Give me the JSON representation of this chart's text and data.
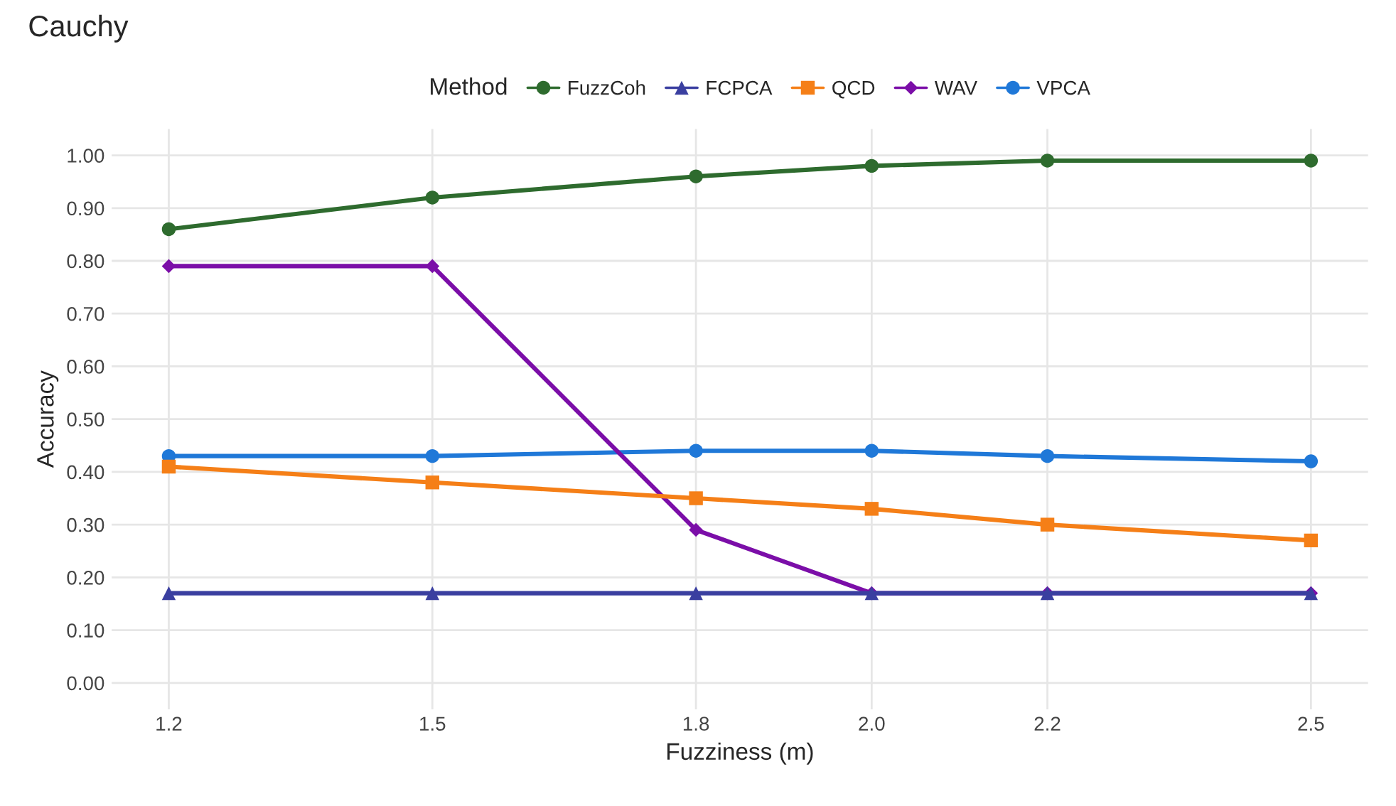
{
  "chart_data": {
    "type": "line",
    "title": "Cauchy",
    "xlabel": "Fuzziness (m)",
    "ylabel": "Accuracy",
    "legend_title": "Method",
    "x": [
      1.2,
      1.5,
      1.8,
      2.0,
      2.2,
      2.5
    ],
    "series": [
      {
        "name": "FuzzCoh",
        "color": "#2e6b2e",
        "marker": "circle",
        "values": [
          0.86,
          0.92,
          0.96,
          0.98,
          0.99,
          0.99
        ]
      },
      {
        "name": "FCPCA",
        "color": "#3a3fa0",
        "marker": "triangle",
        "values": [
          0.17,
          0.17,
          0.17,
          0.17,
          0.17,
          0.17
        ]
      },
      {
        "name": "QCD",
        "color": "#f57f17",
        "marker": "square",
        "values": [
          0.41,
          0.38,
          0.35,
          0.33,
          0.3,
          0.27
        ]
      },
      {
        "name": "WAV",
        "color": "#7b0ea8",
        "marker": "diamond",
        "values": [
          0.79,
          0.79,
          0.29,
          0.17,
          0.17,
          0.17
        ]
      },
      {
        "name": "VPCA",
        "color": "#1f78d8",
        "marker": "circle",
        "values": [
          0.43,
          0.43,
          0.44,
          0.44,
          0.43,
          0.42
        ]
      }
    ],
    "xlim": [
      1.135,
      2.565
    ],
    "xticks": [
      1.2,
      1.5,
      1.8,
      {
        "value": 2.0,
        "label": "2.0"
      },
      2.2,
      2.5
    ],
    "ylim": [
      -0.05,
      1.05
    ],
    "yticks": [
      {
        "value": 0,
        "label": "0.00"
      },
      {
        "value": 0.1,
        "label": "0.10"
      },
      {
        "value": 0.2,
        "label": "0.20"
      },
      {
        "value": 0.3,
        "label": "0.30"
      },
      {
        "value": 0.4,
        "label": "0.40"
      },
      {
        "value": 0.5,
        "label": "0.50"
      },
      {
        "value": 0.6,
        "label": "0.60"
      },
      {
        "value": 0.7,
        "label": "0.70"
      },
      {
        "value": 0.8,
        "label": "0.80"
      },
      {
        "value": 0.9,
        "label": "0.90"
      },
      {
        "value": 1.0,
        "label": "1.00"
      }
    ],
    "grid": true,
    "legend": "top",
    "line_style": "solid"
  }
}
